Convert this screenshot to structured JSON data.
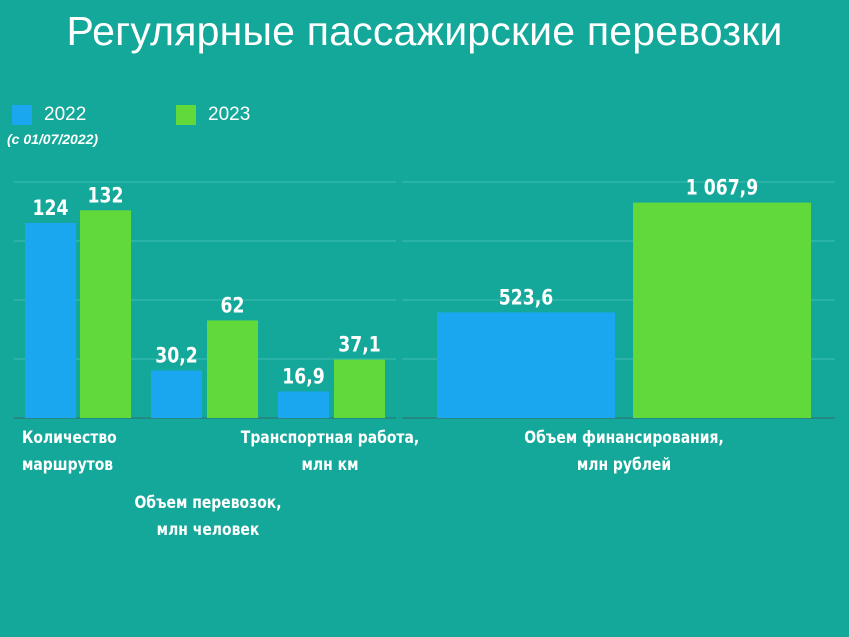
{
  "title": "Регулярные пассажирские перевозки",
  "legend": {
    "items": [
      {
        "label": "2022",
        "color": "#1aa7f0"
      },
      {
        "label": "2023",
        "color": "#62d93a"
      }
    ],
    "note": "(с 01/07/2022)"
  },
  "colors": {
    "background": "#13a89a",
    "gridline": "#3fbcb0",
    "axis": "#2a7f77",
    "series_2022": "#1aa7f0",
    "series_2023": "#62d93a"
  },
  "chart_data": [
    {
      "type": "bar",
      "categories": [
        "Количество маршрутов",
        "Объем перевозок, млн человек",
        "Транспортная работа, млн км"
      ],
      "category_labels": [
        [
          "Количество",
          "маршрутов"
        ],
        [
          "Объем перевозок,",
          "млн человек"
        ],
        [
          "Транспортная работа,",
          "млн км"
        ]
      ],
      "series": [
        {
          "name": "2022",
          "values": [
            124,
            30.2,
            16.9
          ],
          "labels": [
            "124",
            "30,2",
            "16,9"
          ]
        },
        {
          "name": "2023",
          "values": [
            132,
            62,
            37.1
          ],
          "labels": [
            "132",
            "62",
            "37,1"
          ]
        }
      ],
      "ylim": [
        0,
        150
      ],
      "grid": true
    },
    {
      "type": "bar",
      "categories": [
        "Объем финансирования, млн рублей"
      ],
      "category_labels": [
        [
          "Объем финансирования,",
          "млн рублей"
        ]
      ],
      "series": [
        {
          "name": "2022",
          "values": [
            523.6
          ],
          "labels": [
            "523,6"
          ]
        },
        {
          "name": "2023",
          "values": [
            1067.9
          ],
          "labels": [
            "1 067,9"
          ]
        }
      ],
      "ylim": [
        0,
        1170
      ],
      "grid": true
    }
  ]
}
